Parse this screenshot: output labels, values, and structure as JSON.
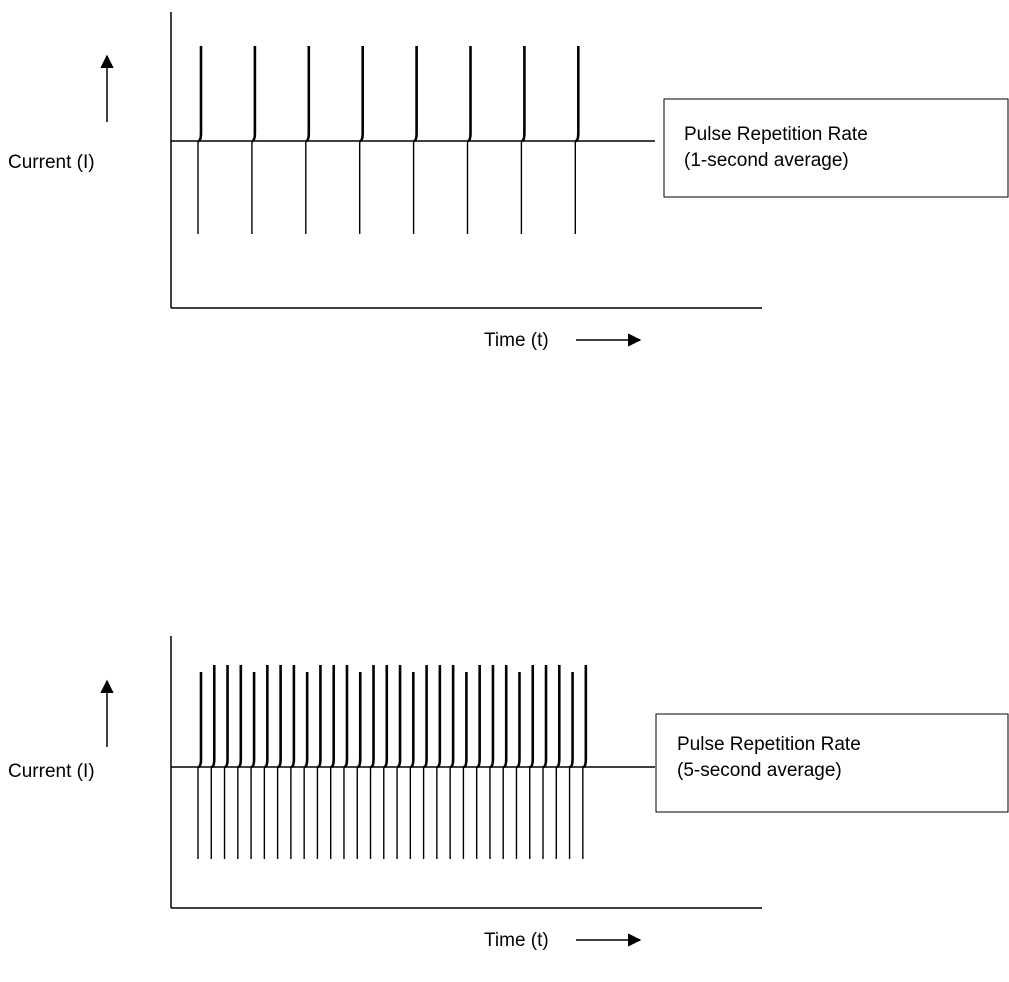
{
  "colors": {
    "ink": "#000000",
    "background": "#ffffff"
  },
  "panels": [
    {
      "id": "top",
      "y_label": "Current (I)",
      "x_label": "Time (t)",
      "box_line1": "Pulse Repetition Rate",
      "box_line2": "(1-second average)",
      "pulse_count": 8,
      "arrow_icon": "arrow-up-icon",
      "time_arrow_icon": "arrow-right-icon"
    },
    {
      "id": "bottom",
      "y_label": "Current (I)",
      "x_label": "Time (t)",
      "box_line1": "Pulse Repetition Rate",
      "box_line2": "(5-second average)",
      "pulse_count": 30,
      "arrow_icon": "arrow-up-icon",
      "time_arrow_icon": "arrow-right-icon"
    }
  ]
}
